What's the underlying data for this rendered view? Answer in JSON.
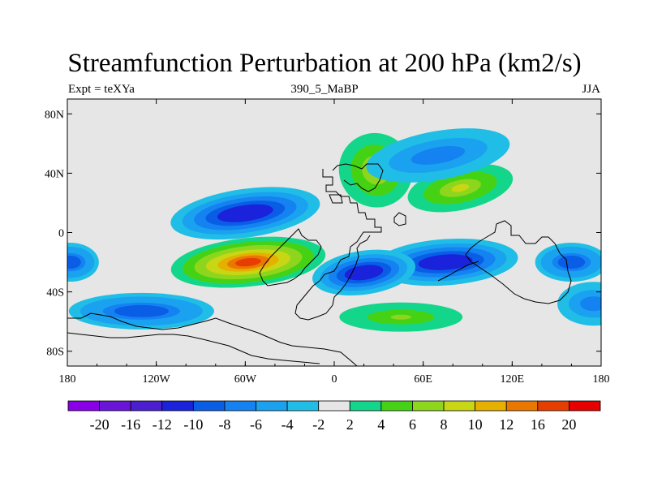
{
  "title": "Streamfunction Perturbation at 200 hPa (km2/s)",
  "left_label": "Expt = teXYa",
  "center_label": "390_5_MaBP",
  "right_label": "JJA",
  "map": {
    "projection": "cylindrical-equidistant",
    "lon_range": [
      -180,
      180
    ],
    "lat_range": [
      -90,
      90
    ],
    "lat_ticks": [
      {
        "value": 80,
        "label": "80N"
      },
      {
        "value": 40,
        "label": "40N"
      },
      {
        "value": 0,
        "label": "0"
      },
      {
        "value": -40,
        "label": "40S"
      },
      {
        "value": -80,
        "label": "80S"
      }
    ],
    "lon_ticks": [
      {
        "value": -180,
        "label": "180"
      },
      {
        "value": -120,
        "label": "120W"
      },
      {
        "value": -60,
        "label": "60W"
      },
      {
        "value": 0,
        "label": "0"
      },
      {
        "value": 60,
        "label": "60E"
      },
      {
        "value": 120,
        "label": "120E"
      },
      {
        "value": 180,
        "label": "180"
      }
    ],
    "background_color": "#e6e6e6"
  },
  "colorbar": {
    "levels": [
      -20,
      -16,
      -12,
      -10,
      -8,
      -6,
      -4,
      -2,
      2,
      4,
      6,
      8,
      10,
      12,
      16,
      20
    ],
    "labels": [
      "-20",
      "-16",
      "-12",
      "-10",
      "-8",
      "-6",
      "-4",
      "-2",
      "2",
      "4",
      "6",
      "8",
      "10",
      "12",
      "16",
      "20"
    ],
    "colors": [
      "#8a00e6",
      "#6a14d8",
      "#4b1ed0",
      "#1a22dc",
      "#0a5ee6",
      "#1482f0",
      "#1aa2f0",
      "#20bee6",
      "#e6e6e6",
      "#14d68a",
      "#46d214",
      "#8ed61e",
      "#c8d614",
      "#e6b000",
      "#ea7800",
      "#e63e00",
      "#e60000"
    ]
  },
  "chart_data": {
    "type": "heatmap",
    "variable": "Streamfunction Perturbation at 200 hPa (km2/s)",
    "experiment": "teXYa",
    "case": "390_5_MaBP",
    "season": "JJA",
    "features": [
      {
        "sign": "positive",
        "lon": -58,
        "lat": -20,
        "peak": 20
      },
      {
        "sign": "negative",
        "lon": -60,
        "lat": 13,
        "peak": -10
      },
      {
        "sign": "negative",
        "lon": -130,
        "lat": -53,
        "peak": -8
      },
      {
        "sign": "negative",
        "lon": 75,
        "lat": -20,
        "peak": -10
      },
      {
        "sign": "negative",
        "lon": 20,
        "lat": -27,
        "peak": -10
      },
      {
        "sign": "negative",
        "lon": 160,
        "lat": -20,
        "peak": -8
      },
      {
        "sign": "negative",
        "lon": -178,
        "lat": -20,
        "peak": -8
      },
      {
        "sign": "positive",
        "lon": 28,
        "lat": 42,
        "peak": 8
      },
      {
        "sign": "positive",
        "lon": 85,
        "lat": 30,
        "peak": 8
      },
      {
        "sign": "positive",
        "lon": 45,
        "lat": -57,
        "peak": 6
      },
      {
        "sign": "negative",
        "lon": 70,
        "lat": 52,
        "peak": -6
      },
      {
        "sign": "negative",
        "lon": 175,
        "lat": -48,
        "peak": -6
      }
    ]
  }
}
